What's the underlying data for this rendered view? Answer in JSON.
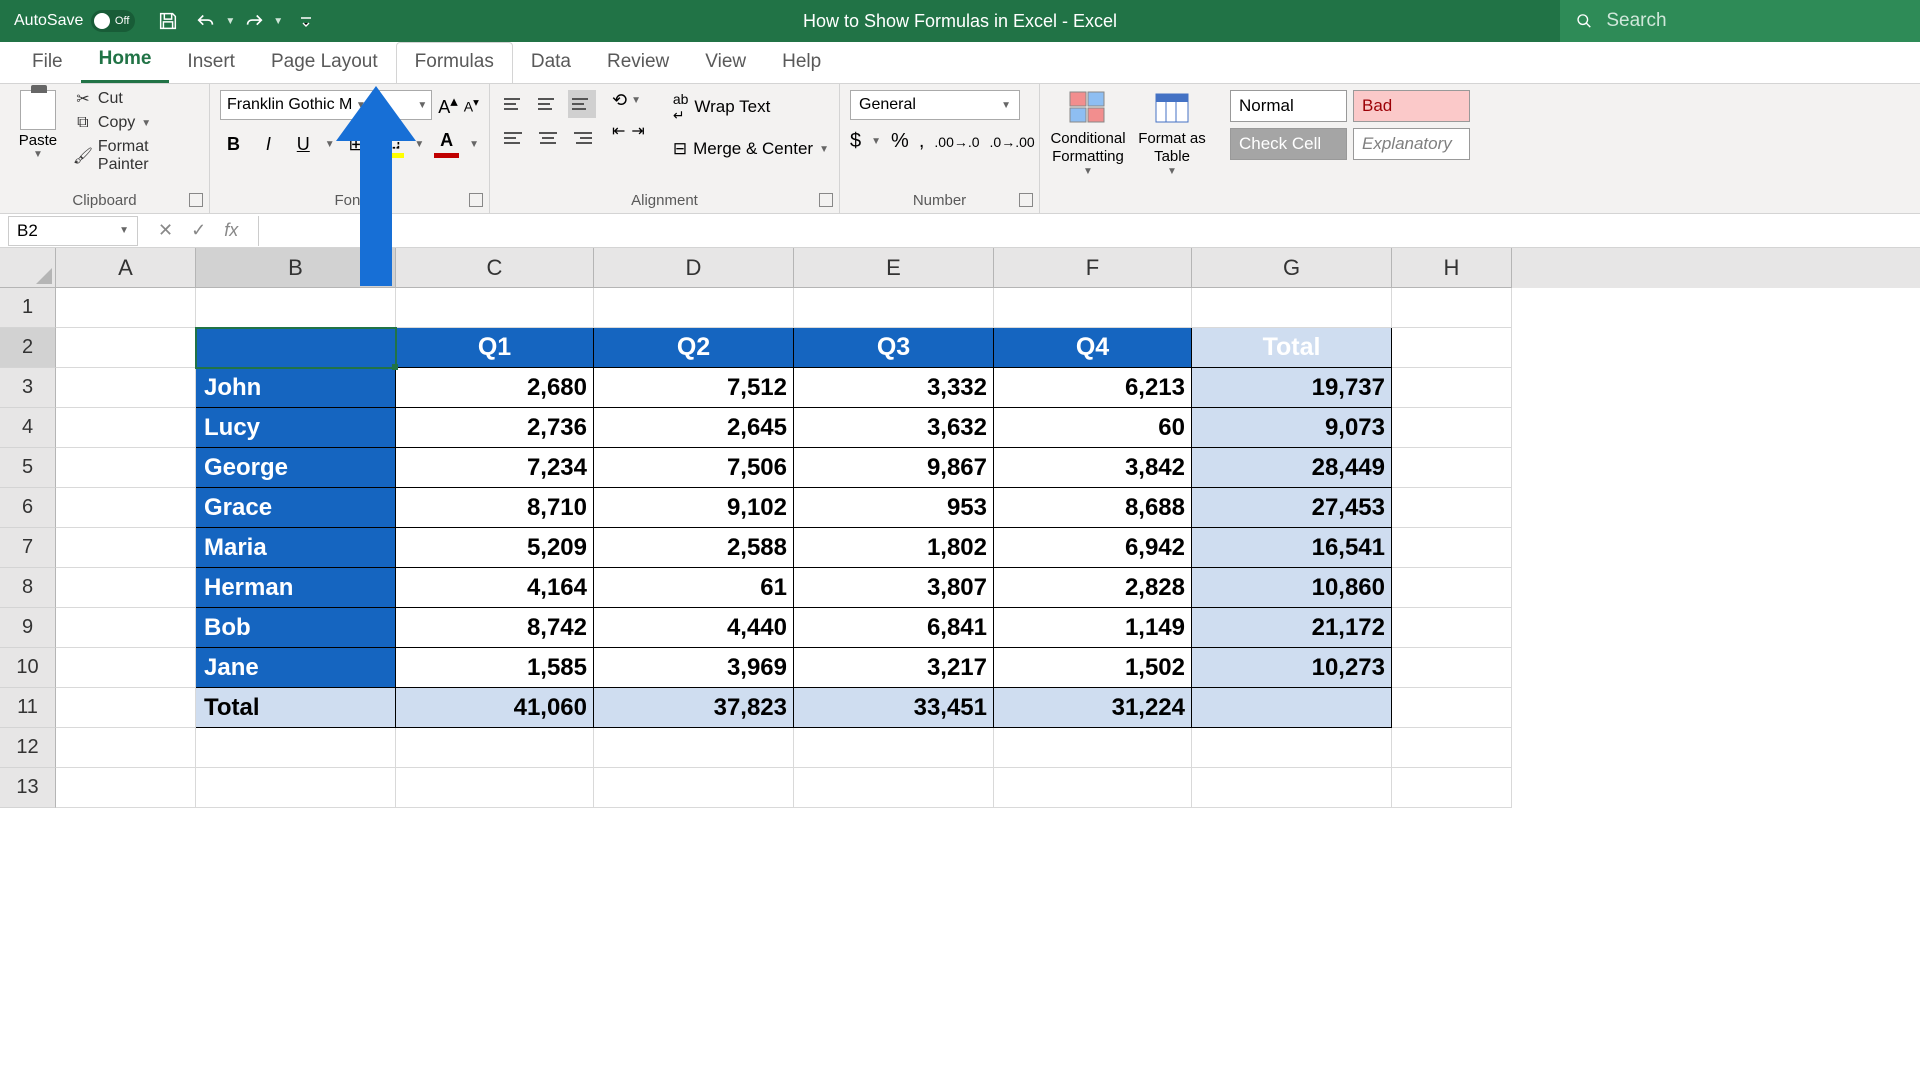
{
  "titlebar": {
    "autosave_label": "AutoSave",
    "autosave_state": "Off",
    "document_title": "How to Show Formulas in Excel  -  Excel",
    "search_placeholder": "Search"
  },
  "tabs": {
    "items": [
      "File",
      "Home",
      "Insert",
      "Page Layout",
      "Formulas",
      "Data",
      "Review",
      "View",
      "Help"
    ],
    "active_index": 1,
    "highlighted_index": 4
  },
  "ribbon": {
    "clipboard": {
      "paste": "Paste",
      "cut": "Cut",
      "copy": "Copy",
      "format_painter": "Format Painter",
      "group_label": "Clipboard"
    },
    "font": {
      "name": "Franklin Gothic M",
      "size": "",
      "group_label": "Font",
      "fill_color": "#ffff00",
      "font_color": "#c00000"
    },
    "alignment": {
      "wrap": "Wrap Text",
      "merge": "Merge & Center",
      "group_label": "Alignment"
    },
    "number": {
      "format": "General",
      "group_label": "Number"
    },
    "cond_format": "Conditional Formatting",
    "format_table": "Format as Table",
    "styles": {
      "normal": "Normal",
      "bad": "Bad",
      "check": "Check Cell",
      "explanatory": "Explanatory"
    }
  },
  "formula_bar": {
    "name_box": "B2",
    "fx": "fx",
    "value": ""
  },
  "grid": {
    "col_widths": {
      "A": 140,
      "B": 200,
      "C": 198,
      "D": 200,
      "E": 200,
      "F": 198,
      "G": 200,
      "H": 120
    },
    "columns": [
      "A",
      "B",
      "C",
      "D",
      "E",
      "F",
      "G"
    ],
    "row_count": 13,
    "selected_cell": "B2",
    "header_row": [
      "",
      "Q1",
      "Q2",
      "Q3",
      "Q4",
      "Total"
    ],
    "data_rows": [
      {
        "name": "John",
        "q1": "2,680",
        "q2": "7,512",
        "q3": "3,332",
        "q4": "6,213",
        "total": "19,737"
      },
      {
        "name": "Lucy",
        "q1": "2,736",
        "q2": "2,645",
        "q3": "3,632",
        "q4": "60",
        "total": "9,073"
      },
      {
        "name": "George",
        "q1": "7,234",
        "q2": "7,506",
        "q3": "9,867",
        "q4": "3,842",
        "total": "28,449"
      },
      {
        "name": "Grace",
        "q1": "8,710",
        "q2": "9,102",
        "q3": "953",
        "q4": "8,688",
        "total": "27,453"
      },
      {
        "name": "Maria",
        "q1": "5,209",
        "q2": "2,588",
        "q3": "1,802",
        "q4": "6,942",
        "total": "16,541"
      },
      {
        "name": "Herman",
        "q1": "4,164",
        "q2": "61",
        "q3": "3,807",
        "q4": "2,828",
        "total": "10,860"
      },
      {
        "name": "Bob",
        "q1": "8,742",
        "q2": "4,440",
        "q3": "6,841",
        "q4": "1,149",
        "total": "21,172"
      },
      {
        "name": "Jane",
        "q1": "1,585",
        "q2": "3,969",
        "q3": "3,217",
        "q4": "1,502",
        "total": "10,273"
      }
    ],
    "total_row": {
      "label": "Total",
      "q1": "41,060",
      "q2": "37,823",
      "q3": "33,451",
      "q4": "31,224",
      "total": ""
    },
    "colors": {
      "header_bg": "#1565c0",
      "header_fg": "#ffffff",
      "total_bg": "#cfddf0",
      "gridline": "#d9d9d9",
      "border": "#000000"
    }
  },
  "arrow": {
    "color": "#176fd6"
  }
}
